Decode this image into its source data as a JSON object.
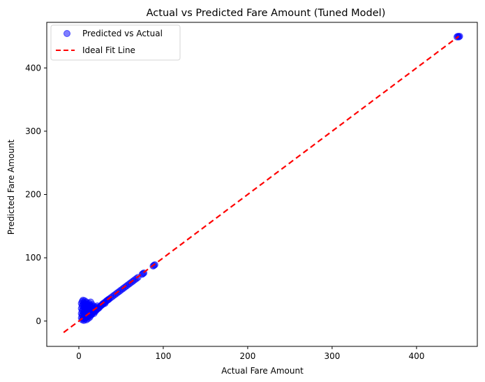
{
  "chart_data": {
    "type": "scatter",
    "title": "Actual vs Predicted Fare Amount (Tuned Model)",
    "xlabel": "Actual Fare Amount",
    "ylabel": "Predicted Fare Amount",
    "xlim": [
      -38,
      472
    ],
    "ylim": [
      -40,
      472
    ],
    "xticks": [
      0,
      100,
      200,
      300,
      400
    ],
    "yticks": [
      0,
      100,
      200,
      300,
      400
    ],
    "grid": false,
    "legend_position": "top-left",
    "colors": {
      "points": "#0000ff",
      "line": "#ff0000"
    },
    "series": [
      {
        "name": "Predicted vs Actual",
        "kind": "scatter",
        "points": [
          [
            3,
            5
          ],
          [
            3,
            12
          ],
          [
            3,
            20
          ],
          [
            3,
            28
          ],
          [
            4,
            2
          ],
          [
            4,
            9
          ],
          [
            4,
            16
          ],
          [
            4,
            24
          ],
          [
            4,
            31
          ],
          [
            5,
            4
          ],
          [
            5,
            11
          ],
          [
            5,
            18
          ],
          [
            5,
            26
          ],
          [
            5,
            33
          ],
          [
            6,
            1
          ],
          [
            6,
            7
          ],
          [
            6,
            14
          ],
          [
            6,
            22
          ],
          [
            6,
            29
          ],
          [
            7,
            3
          ],
          [
            7,
            10
          ],
          [
            7,
            17
          ],
          [
            7,
            25
          ],
          [
            7,
            32
          ],
          [
            8,
            5
          ],
          [
            8,
            13
          ],
          [
            8,
            21
          ],
          [
            8,
            28
          ],
          [
            9,
            2
          ],
          [
            9,
            8
          ],
          [
            9,
            15
          ],
          [
            9,
            23
          ],
          [
            9,
            30
          ],
          [
            10,
            6
          ],
          [
            10,
            12
          ],
          [
            10,
            19
          ],
          [
            10,
            27
          ],
          [
            11,
            4
          ],
          [
            11,
            10
          ],
          [
            11,
            16
          ],
          [
            11,
            24
          ],
          [
            12,
            8
          ],
          [
            12,
            14
          ],
          [
            12,
            20
          ],
          [
            12,
            28
          ],
          [
            13,
            6
          ],
          [
            13,
            12
          ],
          [
            13,
            18
          ],
          [
            13,
            25
          ],
          [
            14,
            9
          ],
          [
            14,
            15
          ],
          [
            14,
            22
          ],
          [
            14,
            30
          ],
          [
            15,
            10
          ],
          [
            15,
            16
          ],
          [
            15,
            24
          ],
          [
            16,
            12
          ],
          [
            16,
            18
          ],
          [
            16,
            26
          ],
          [
            17,
            14
          ],
          [
            17,
            20
          ],
          [
            18,
            12
          ],
          [
            18,
            17
          ],
          [
            18,
            23
          ],
          [
            19,
            15
          ],
          [
            19,
            20
          ],
          [
            20,
            16
          ],
          [
            20,
            22
          ],
          [
            21,
            18
          ],
          [
            22,
            19
          ],
          [
            22,
            24
          ],
          [
            23,
            20
          ],
          [
            24,
            21
          ],
          [
            25,
            23
          ],
          [
            26,
            24
          ],
          [
            27,
            25
          ],
          [
            28,
            27
          ],
          [
            29,
            27
          ],
          [
            30,
            29
          ],
          [
            31,
            28
          ],
          [
            32,
            31
          ],
          [
            33,
            32
          ],
          [
            34,
            33
          ],
          [
            35,
            34
          ],
          [
            36,
            35
          ],
          [
            38,
            37
          ],
          [
            40,
            39
          ],
          [
            42,
            41
          ],
          [
            44,
            43
          ],
          [
            46,
            45
          ],
          [
            48,
            47
          ],
          [
            50,
            49
          ],
          [
            52,
            51
          ],
          [
            54,
            53
          ],
          [
            56,
            55
          ],
          [
            58,
            57
          ],
          [
            60,
            59
          ],
          [
            62,
            61
          ],
          [
            64,
            63
          ],
          [
            66,
            65
          ],
          [
            68,
            67
          ],
          [
            70,
            69
          ],
          [
            75,
            74
          ],
          [
            76,
            75
          ],
          [
            77,
            76
          ],
          [
            88,
            87
          ],
          [
            89,
            88
          ],
          [
            90,
            89
          ],
          [
            448,
            449
          ],
          [
            449,
            450
          ],
          [
            450,
            449
          ],
          [
            451,
            450
          ]
        ]
      },
      {
        "name": "Ideal Fit Line",
        "kind": "line",
        "style": "dashed",
        "points": [
          [
            -18,
            -18
          ],
          [
            450,
            450
          ]
        ]
      }
    ]
  }
}
